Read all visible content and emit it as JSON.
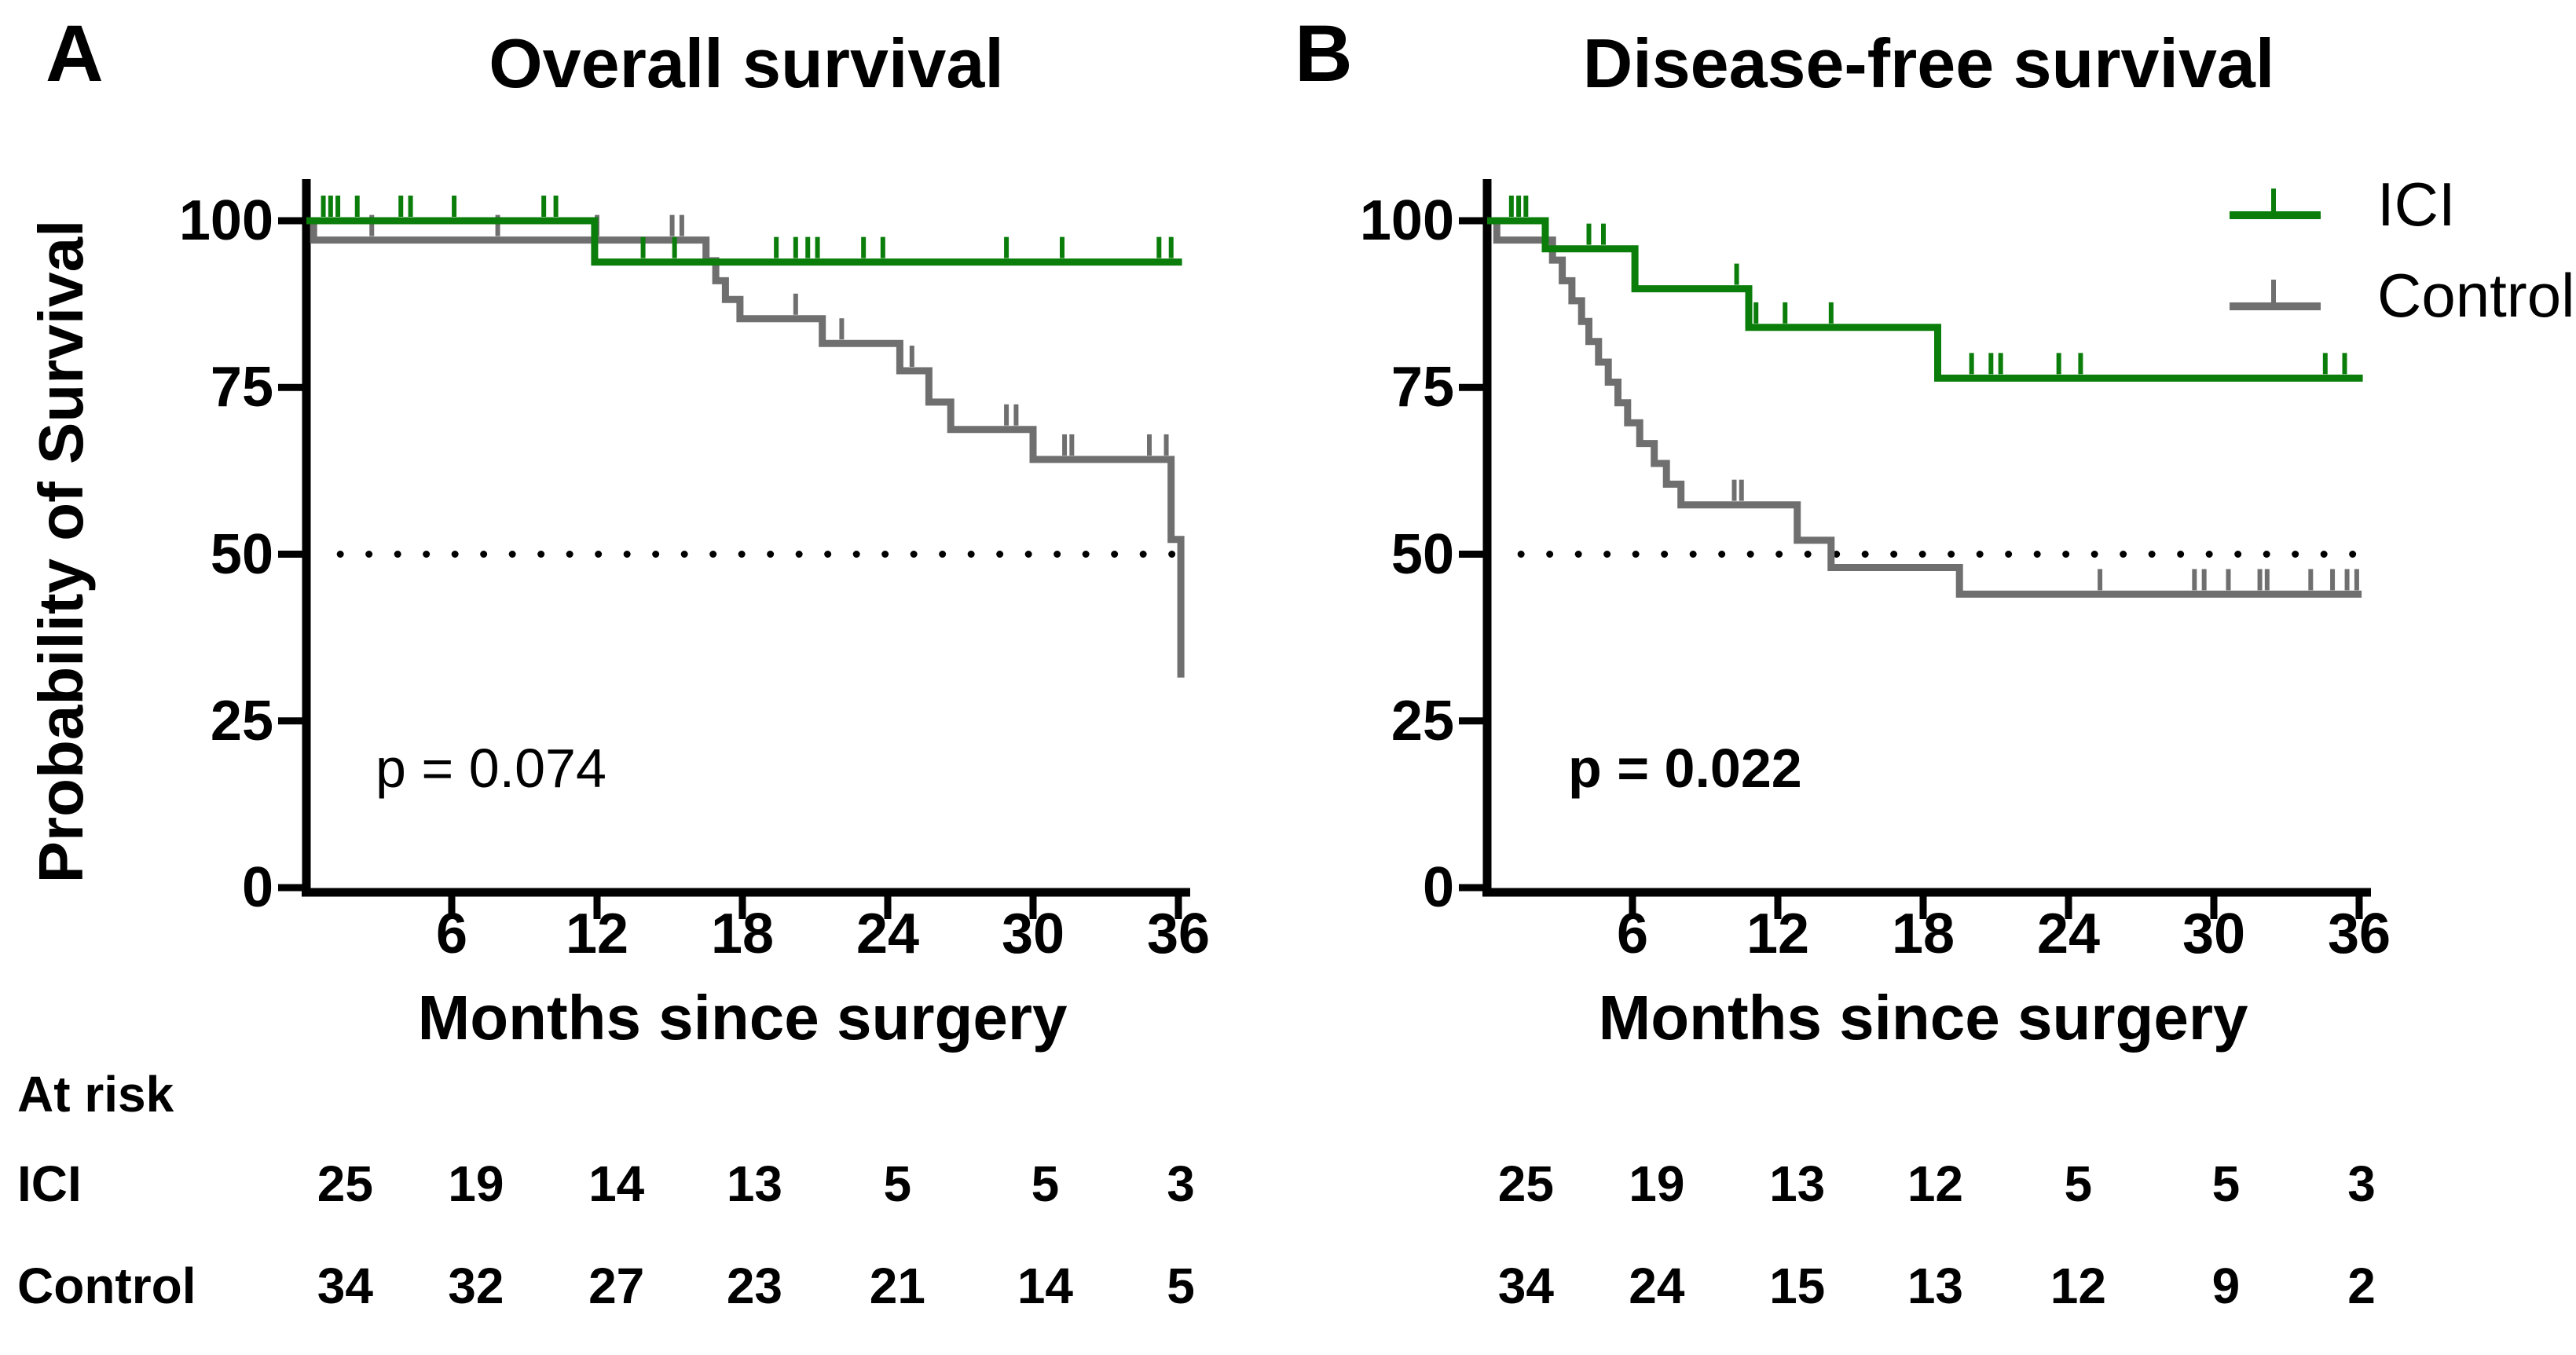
{
  "figure": {
    "background": "#ffffff",
    "text_color": "#000000",
    "panels": [
      {
        "letter": "A",
        "title": "Overall survival",
        "ylabel": "Probability of Survival",
        "xlabel": "Months since surgery",
        "p_value": "p = 0.074"
      },
      {
        "letter": "B",
        "title": "Disease-free survival",
        "xlabel": "Months since surgery",
        "p_value": "p = 0.022"
      }
    ],
    "legend": {
      "items": [
        {
          "label": "ICI",
          "color": "#0a7d0a"
        },
        {
          "label": "Control",
          "color": "#6f6f6f"
        }
      ]
    },
    "at_risk": {
      "header": "At risk",
      "row_labels": [
        "ICI",
        "Control"
      ]
    },
    "colors": {
      "ici_green": "#0a7d0a",
      "control_gray": "#6f6f6f",
      "axis_black": "#000000"
    }
  },
  "chart_data": [
    {
      "type": "line",
      "km_style": "step",
      "title": "Overall survival",
      "xlabel": "Months since surgery",
      "ylabel": "Probability of Survival",
      "xlim": [
        0,
        36
      ],
      "ylim": [
        0,
        100
      ],
      "xticks": [
        6,
        12,
        18,
        24,
        30,
        36
      ],
      "yticks": [
        0,
        25,
        50,
        75,
        100
      ],
      "reference_dotted_line_y": 50,
      "p_value_text": "p = 0.074",
      "legend_position": "none",
      "series": [
        {
          "name": "Control",
          "color": "#6f6f6f",
          "steps": [
            [
              0,
              100
            ],
            [
              0.3,
              100
            ],
            [
              0.3,
              97.1
            ],
            [
              16.5,
              97.1
            ],
            [
              16.5,
              94
            ],
            [
              16.9,
              94
            ],
            [
              16.9,
              91
            ],
            [
              17.3,
              91
            ],
            [
              17.3,
              88.2
            ],
            [
              17.9,
              88.2
            ],
            [
              17.9,
              85.3
            ],
            [
              21.3,
              85.3
            ],
            [
              21.3,
              81.6
            ],
            [
              24.5,
              81.6
            ],
            [
              24.5,
              77.5
            ],
            [
              25.7,
              77.5
            ],
            [
              25.7,
              72.8
            ],
            [
              26.6,
              72.8
            ],
            [
              26.6,
              68.7
            ],
            [
              30,
              68.7
            ],
            [
              30,
              64.2
            ],
            [
              35.7,
              64.2
            ],
            [
              35.7,
              52.2
            ],
            [
              36.1,
              52.2
            ],
            [
              36.1,
              31.5
            ]
          ],
          "censor_ticks": [
            [
              2.7,
              97.1
            ],
            [
              7.9,
              97.1
            ],
            [
              12,
              97.1
            ],
            [
              15.1,
              97.1
            ],
            [
              15.5,
              97.1
            ],
            [
              20.2,
              85.3
            ],
            [
              22.1,
              81.6
            ],
            [
              25,
              77.5
            ],
            [
              28.9,
              68.7
            ],
            [
              29.3,
              68.7
            ],
            [
              31.3,
              64.2
            ],
            [
              31.6,
              64.2
            ],
            [
              34.8,
              64.2
            ],
            [
              35.5,
              64.2
            ]
          ]
        },
        {
          "name": "ICI",
          "color": "#0a7d0a",
          "steps": [
            [
              0,
              100
            ],
            [
              11.9,
              100
            ],
            [
              11.9,
              93.8
            ],
            [
              36.15,
              93.8
            ]
          ],
          "censor_ticks": [
            [
              0.7,
              100
            ],
            [
              1,
              100
            ],
            [
              1.3,
              100
            ],
            [
              2.1,
              100
            ],
            [
              3.9,
              100
            ],
            [
              4.3,
              100
            ],
            [
              6.1,
              100
            ],
            [
              9.8,
              100
            ],
            [
              10.3,
              100
            ],
            [
              13.9,
              93.8
            ],
            [
              15.2,
              93.8
            ],
            [
              19.4,
              93.8
            ],
            [
              20.2,
              93.8
            ],
            [
              20.7,
              93.8
            ],
            [
              21.1,
              93.8
            ],
            [
              23,
              93.8
            ],
            [
              23.8,
              93.8
            ],
            [
              28.9,
              93.8
            ],
            [
              31.2,
              93.8
            ],
            [
              35.2,
              93.8
            ],
            [
              35.7,
              93.8
            ]
          ]
        }
      ],
      "at_risk": {
        "timepoints": [
          0,
          6,
          12,
          18,
          24,
          30,
          36
        ],
        "rows": [
          {
            "name": "ICI",
            "values": [
              25,
              19,
              14,
              13,
              5,
              5,
              3
            ]
          },
          {
            "name": "Control",
            "values": [
              34,
              32,
              27,
              23,
              21,
              14,
              5
            ]
          }
        ]
      }
    },
    {
      "type": "line",
      "km_style": "step",
      "title": "Disease-free survival",
      "xlabel": "Months since surgery",
      "ylabel": "Probability of Survival",
      "xlim": [
        0,
        36
      ],
      "ylim": [
        0,
        100
      ],
      "xticks": [
        6,
        12,
        18,
        24,
        30,
        36
      ],
      "yticks": [
        0,
        25,
        50,
        75,
        100
      ],
      "reference_dotted_line_y": 50,
      "p_value_text": "p = 0.022",
      "legend_position": "top-right",
      "series": [
        {
          "name": "Control",
          "color": "#6f6f6f",
          "steps": [
            [
              0,
              100
            ],
            [
              0.4,
              100
            ],
            [
              0.4,
              97.1
            ],
            [
              2.7,
              97.1
            ],
            [
              2.7,
              94.1
            ],
            [
              3.1,
              94.1
            ],
            [
              3.1,
              91
            ],
            [
              3.5,
              91
            ],
            [
              3.5,
              88
            ],
            [
              3.9,
              88
            ],
            [
              3.9,
              84.9
            ],
            [
              4.2,
              84.9
            ],
            [
              4.2,
              81.9
            ],
            [
              4.6,
              81.9
            ],
            [
              4.6,
              78.8
            ],
            [
              5,
              78.8
            ],
            [
              5,
              75.8
            ],
            [
              5.4,
              75.8
            ],
            [
              5.4,
              72.7
            ],
            [
              5.8,
              72.7
            ],
            [
              5.8,
              69.7
            ],
            [
              6.3,
              69.7
            ],
            [
              6.3,
              66.6
            ],
            [
              6.9,
              66.6
            ],
            [
              6.9,
              63.6
            ],
            [
              7.4,
              63.6
            ],
            [
              7.4,
              60.5
            ],
            [
              8,
              60.5
            ],
            [
              8,
              57.4
            ],
            [
              12.8,
              57.4
            ],
            [
              12.8,
              52.1
            ],
            [
              14.2,
              52.1
            ],
            [
              14.2,
              48
            ],
            [
              19.5,
              48
            ],
            [
              19.5,
              44
            ],
            [
              36.1,
              44
            ]
          ],
          "censor_ticks": [
            [
              10.2,
              57.4
            ],
            [
              10.5,
              57.4
            ],
            [
              25.3,
              44
            ],
            [
              29.2,
              44
            ],
            [
              29.6,
              44
            ],
            [
              30.6,
              44
            ],
            [
              31.9,
              44
            ],
            [
              32.2,
              44
            ],
            [
              34,
              44
            ],
            [
              34.9,
              44
            ],
            [
              35.5,
              44
            ],
            [
              35.9,
              44
            ]
          ]
        },
        {
          "name": "ICI",
          "color": "#0a7d0a",
          "steps": [
            [
              0,
              100
            ],
            [
              2.4,
              100
            ],
            [
              2.4,
              95.8
            ],
            [
              6.1,
              95.8
            ],
            [
              6.1,
              89.8
            ],
            [
              10.8,
              89.8
            ],
            [
              10.8,
              84
            ],
            [
              18.6,
              84
            ],
            [
              18.6,
              76.4
            ],
            [
              36.15,
              76.4
            ]
          ],
          "censor_ticks": [
            [
              1,
              100
            ],
            [
              1.3,
              100
            ],
            [
              1.6,
              100
            ],
            [
              4.2,
              95.8
            ],
            [
              4.8,
              95.8
            ],
            [
              10.3,
              89.8
            ],
            [
              11.1,
              84
            ],
            [
              12.3,
              84
            ],
            [
              14.2,
              84
            ],
            [
              20,
              76.4
            ],
            [
              20.8,
              76.4
            ],
            [
              21.2,
              76.4
            ],
            [
              23.6,
              76.4
            ],
            [
              24.5,
              76.4
            ],
            [
              34.6,
              76.4
            ],
            [
              35.4,
              76.4
            ]
          ]
        }
      ],
      "at_risk": {
        "timepoints": [
          0,
          6,
          12,
          18,
          24,
          30,
          36
        ],
        "rows": [
          {
            "name": "ICI",
            "values": [
              25,
              19,
              13,
              12,
              5,
              5,
              3
            ]
          },
          {
            "name": "Control",
            "values": [
              34,
              24,
              15,
              13,
              12,
              9,
              2
            ]
          }
        ]
      }
    }
  ]
}
